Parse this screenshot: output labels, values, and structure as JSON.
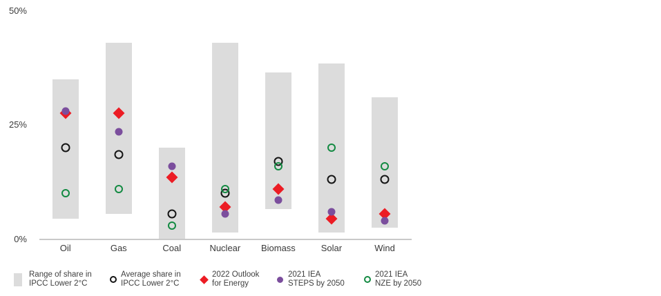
{
  "colors": {
    "range": "#dcdcdc",
    "average": "#141414",
    "outlook": "#ec1c24",
    "steps": "#7b4e9d",
    "nze": "#138a42",
    "axis_line": "#c9c9c9",
    "text": "#3b3b3b"
  },
  "y_axis": {
    "ticks": [
      {
        "label": "0%",
        "value": 0
      },
      {
        "label": "25%",
        "value": 25
      },
      {
        "label": "50%",
        "value": 50
      }
    ]
  },
  "chart_data": {
    "type": "range-dot",
    "title": "",
    "xlabel": "",
    "ylabel": "",
    "ylim": [
      0,
      50
    ],
    "grid": false,
    "legend_position": "bottom",
    "categories": [
      "Oil",
      "Gas",
      "Coal",
      "Nuclear",
      "Biomass",
      "Solar",
      "Wind"
    ],
    "range_series": {
      "key": "range",
      "name": "Range of share in IPCC Lower 2°C",
      "color": "#dcdcdc",
      "ranges": [
        [
          4.5,
          35
        ],
        [
          5.5,
          43
        ],
        [
          0,
          20
        ],
        [
          1.5,
          43
        ],
        [
          6.5,
          36.5
        ],
        [
          1.5,
          38.5
        ],
        [
          2.5,
          31
        ]
      ]
    },
    "series": [
      {
        "key": "average",
        "name": "Average share in IPCC Lower 2°C",
        "marker": "open-circle",
        "color": "#141414",
        "size": 13,
        "stroke": 2.6,
        "values": [
          20,
          18.5,
          5.5,
          10,
          17,
          13,
          13
        ]
      },
      {
        "key": "outlook",
        "name": "2022 Outlook for Energy",
        "marker": "diamond",
        "color": "#ec1c24",
        "size": 12,
        "values": [
          27.5,
          27.5,
          13.5,
          7,
          11,
          4.5,
          5.5
        ]
      },
      {
        "key": "steps",
        "name": "2021 IEA STEPS by 2050",
        "marker": "filled-circle",
        "color": "#7b4e9d",
        "size": 11,
        "values": [
          28,
          23.5,
          16,
          5.5,
          8.5,
          6,
          4
        ]
      },
      {
        "key": "nze",
        "name": "2021 IEA NZE by 2050",
        "marker": "open-circle",
        "color": "#138a42",
        "size": 12,
        "stroke": 2.5,
        "values": [
          10,
          11,
          3,
          11,
          16,
          20,
          16
        ]
      }
    ]
  },
  "legend": {
    "items": [
      {
        "key": "range",
        "marker": "swatch",
        "color": "#dcdcdc",
        "line1": "Range of share in",
        "line2": "IPCC Lower 2°C"
      },
      {
        "key": "average",
        "marker": "open-circle",
        "color": "#141414",
        "line1": "Average share in",
        "line2": "IPCC Lower 2°C"
      },
      {
        "key": "outlook",
        "marker": "diamond",
        "color": "#ec1c24",
        "line1": "2022 Outlook",
        "line2": "for Energy"
      },
      {
        "key": "steps",
        "marker": "filled-circle",
        "color": "#7b4e9d",
        "line1": "2021 IEA",
        "line2": "STEPS by 2050"
      },
      {
        "key": "nze",
        "marker": "open-circle",
        "color": "#138a42",
        "line1": "2021 IEA",
        "line2": "NZE by 2050"
      }
    ]
  }
}
